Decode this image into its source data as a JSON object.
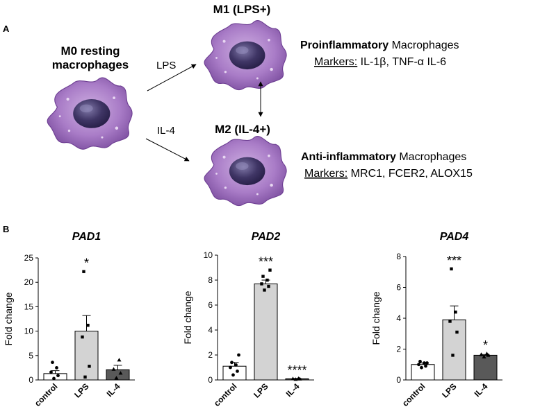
{
  "panel_a": {
    "label": "A",
    "m0_title_line1": "M0 resting",
    "m0_title_line2": "macrophages",
    "lps_arrow_label": "LPS",
    "il4_arrow_label": "IL-4",
    "m1_title": "M1 (LPS+)",
    "m2_title": "M2 (IL-4+)",
    "m1_desc_bold": "Proinflammatory",
    "m1_desc_rest": " Macrophages",
    "m1_markers_label": "Markers:",
    "m1_markers": " IL-1β, TNF-α IL-6",
    "m2_desc_bold": "Anti-inflammatory",
    "m2_desc_rest": " Macrophages",
    "m2_markers_label": "Markers:",
    "m2_markers": " MRC1, FCER2, ALOX15"
  },
  "panel_b": {
    "label": "B"
  },
  "colors": {
    "control": "#ffffff",
    "lps": "#d3d3d3",
    "il4": "#595959",
    "cell_light": "#b98fd1",
    "cell_dark": "#8f5fb0",
    "nucleus": "#463a70"
  },
  "chart_data": [
    {
      "type": "bar",
      "title": "PAD1",
      "xlabel": "",
      "ylabel": "Fold change",
      "categories": [
        "control",
        "LPS",
        "IL-4"
      ],
      "values": [
        1.3,
        10.0,
        2.1
      ],
      "sem": [
        0.6,
        3.2,
        0.9
      ],
      "ylim": [
        0,
        25
      ],
      "yticks": [
        "0",
        "5",
        "10",
        "15",
        "20",
        "25"
      ],
      "points": [
        [
          0.3,
          0.9,
          1.6,
          2.5,
          3.6
        ],
        [
          0.6,
          2.8,
          8.8,
          11.2,
          22.2
        ],
        [
          0.4,
          1.4,
          2.2,
          4.1
        ]
      ],
      "significance": [
        "",
        "*",
        ""
      ]
    },
    {
      "type": "bar",
      "title": "PAD2",
      "xlabel": "",
      "ylabel": "Fold change",
      "categories": [
        "control",
        "LPS",
        "IL-4"
      ],
      "values": [
        1.1,
        7.7,
        0.1
      ],
      "sem": [
        0.3,
        0.3,
        0.02
      ],
      "ylim": [
        0,
        10
      ],
      "yticks": [
        "0",
        "2",
        "4",
        "6",
        "8",
        "10"
      ],
      "points": [
        [
          0.4,
          0.7,
          1.0,
          1.2,
          1.4,
          2.0
        ],
        [
          7.2,
          7.5,
          7.7,
          8.0,
          8.3,
          8.8
        ],
        [
          0.05,
          0.08,
          0.1,
          0.12
        ]
      ],
      "significance": [
        "",
        "***",
        "****"
      ]
    },
    {
      "type": "bar",
      "title": "PAD4",
      "xlabel": "",
      "ylabel": "Fold change",
      "categories": [
        "control",
        "LPS",
        "IL-4"
      ],
      "values": [
        1.0,
        3.9,
        1.6
      ],
      "sem": [
        0.1,
        0.9,
        0.05
      ],
      "ylim": [
        0,
        8
      ],
      "yticks": [
        "0",
        "2",
        "4",
        "6",
        "8"
      ],
      "points": [
        [
          0.8,
          0.9,
          1.0,
          1.1,
          1.2,
          1.1
        ],
        [
          1.6,
          3.1,
          3.8,
          4.4,
          7.2
        ],
        [
          1.5,
          1.6,
          1.65,
          1.7
        ]
      ],
      "significance": [
        "",
        "***",
        "*"
      ]
    }
  ]
}
